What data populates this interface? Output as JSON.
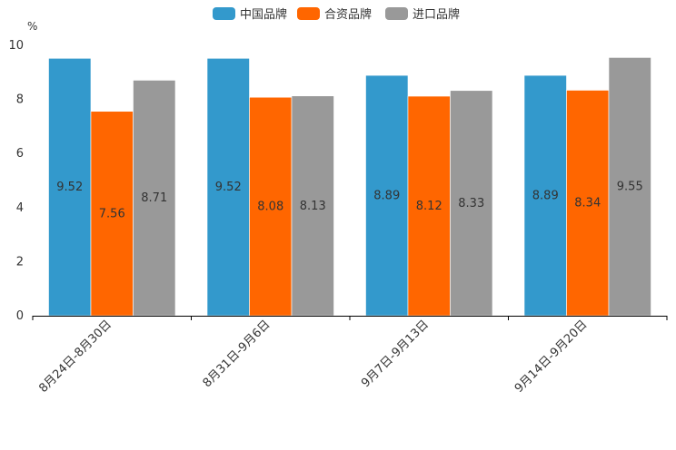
{
  "chart_data": {
    "type": "bar",
    "unit": "%",
    "categories": [
      "8月24日-8月30日",
      "8月31日-9月6日",
      "9月7日-9月13日",
      "9月14日-9月20日"
    ],
    "series": [
      {
        "name": "中国品牌",
        "color": "#3399CC",
        "values": [
          9.52,
          9.52,
          8.89,
          8.89
        ]
      },
      {
        "name": "合资品牌",
        "color": "#FF6600",
        "values": [
          7.56,
          8.08,
          8.12,
          8.34
        ]
      },
      {
        "name": "进口品牌",
        "color": "#999999",
        "values": [
          8.71,
          8.13,
          8.33,
          9.55
        ]
      }
    ],
    "ylim": [
      0,
      10
    ],
    "yticks": [
      0,
      2,
      4,
      6,
      8,
      10
    ],
    "legend": "top-center",
    "grid": false,
    "title": "",
    "xlabel": "",
    "ylabel": "%"
  }
}
